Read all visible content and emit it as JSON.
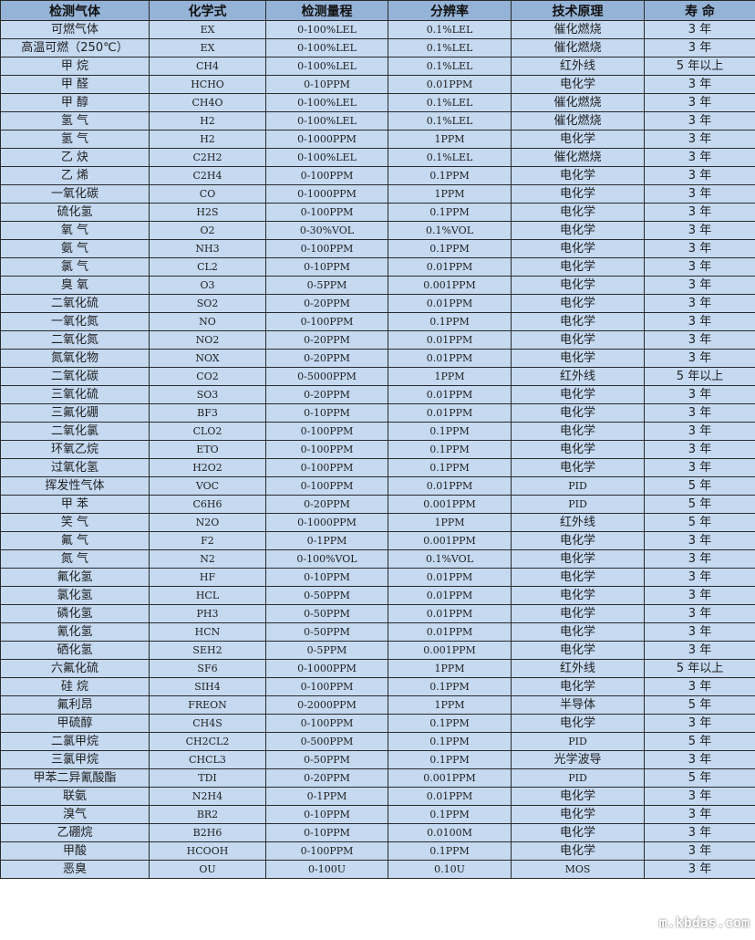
{
  "headers": [
    "检测气体",
    "化学式",
    "检测量程",
    "分辨率",
    "技术原理",
    "寿 命"
  ],
  "rows": [
    [
      "可燃气体",
      "EX",
      "0-100%LEL",
      "0.1%LEL",
      "催化燃烧",
      "3 年"
    ],
    [
      "高温可燃（250℃）",
      "EX",
      "0-100%LEL",
      "0.1%LEL",
      "催化燃烧",
      "3 年"
    ],
    [
      "甲 烷",
      "CH4",
      "0-100%LEL",
      "0.1%LEL",
      "红外线",
      "5 年以上"
    ],
    [
      "甲 醛",
      "HCHO",
      "0-10PPM",
      "0.01PPM",
      "电化学",
      "3 年"
    ],
    [
      "甲 醇",
      "CH4O",
      "0-100%LEL",
      "0.1%LEL",
      "催化燃烧",
      "3 年"
    ],
    [
      "氢 气",
      "H2",
      "0-100%LEL",
      "0.1%LEL",
      "催化燃烧",
      "3 年"
    ],
    [
      "氢 气",
      "H2",
      "0-1000PPM",
      "1PPM",
      "电化学",
      "3 年"
    ],
    [
      "乙 炔",
      "C2H2",
      "0-100%LEL",
      "0.1%LEL",
      "催化燃烧",
      "3 年"
    ],
    [
      "乙 烯",
      "C2H4",
      "0-100PPM",
      "0.1PPM",
      "电化学",
      "3 年"
    ],
    [
      "一氧化碳",
      "CO",
      "0-1000PPM",
      "1PPM",
      "电化学",
      "3 年"
    ],
    [
      "硫化氢",
      "H2S",
      "0-100PPM",
      "0.1PPM",
      "电化学",
      "3 年"
    ],
    [
      "氧 气",
      "O2",
      "0-30%VOL",
      "0.1%VOL",
      "电化学",
      "3 年"
    ],
    [
      "氨 气",
      "NH3",
      "0-100PPM",
      "0.1PPM",
      "电化学",
      "3 年"
    ],
    [
      "氯 气",
      "CL2",
      "0-10PPM",
      "0.01PPM",
      "电化学",
      "3 年"
    ],
    [
      "臭 氧",
      "O3",
      "0-5PPM",
      "0.001PPM",
      "电化学",
      "3 年"
    ],
    [
      "二氧化硫",
      "SO2",
      "0-20PPM",
      "0.01PPM",
      "电化学",
      "3 年"
    ],
    [
      "一氧化氮",
      "NO",
      "0-100PPM",
      "0.1PPM",
      "电化学",
      "3 年"
    ],
    [
      "二氧化氮",
      "NO2",
      "0-20PPM",
      "0.01PPM",
      "电化学",
      "3 年"
    ],
    [
      "氮氧化物",
      "NOX",
      "0-20PPM",
      "0.01PPM",
      "电化学",
      "3 年"
    ],
    [
      "二氧化碳",
      "CO2",
      "0-5000PPM",
      "1PPM",
      "红外线",
      "5 年以上"
    ],
    [
      "三氧化硫",
      "SO3",
      "0-20PPM",
      "0.01PPM",
      "电化学",
      "3 年"
    ],
    [
      "三氟化硼",
      "BF3",
      "0-10PPM",
      "0.01PPM",
      "电化学",
      "3 年"
    ],
    [
      "二氧化氯",
      "CLO2",
      "0-100PPM",
      "0.1PPM",
      "电化学",
      "3 年"
    ],
    [
      "环氧乙烷",
      "ETO",
      "0-100PPM",
      "0.1PPM",
      "电化学",
      "3 年"
    ],
    [
      "过氧化氢",
      "H2O2",
      "0-100PPM",
      "0.1PPM",
      "电化学",
      "3 年"
    ],
    [
      "挥发性气体",
      "VOC",
      "0-100PPM",
      "0.01PPM",
      "PID",
      "5 年"
    ],
    [
      "甲 苯",
      "C6H6",
      "0-20PPM",
      "0.001PPM",
      "PID",
      "5 年"
    ],
    [
      "笑 气",
      "N2O",
      "0-1000PPM",
      "1PPM",
      "红外线",
      "5 年"
    ],
    [
      "氟 气",
      "F2",
      "0-1PPM",
      "0.001PPM",
      "电化学",
      "3 年"
    ],
    [
      "氮 气",
      "N2",
      "0-100%VOL",
      "0.1%VOL",
      "电化学",
      "3 年"
    ],
    [
      "氟化氢",
      "HF",
      "0-10PPM",
      "0.01PPM",
      "电化学",
      "3 年"
    ],
    [
      "氯化氢",
      "HCL",
      "0-50PPM",
      "0.01PPM",
      "电化学",
      "3 年"
    ],
    [
      "磷化氢",
      "PH3",
      "0-50PPM",
      "0.01PPM",
      "电化学",
      "3 年"
    ],
    [
      "氰化氢",
      "HCN",
      "0-50PPM",
      "0.01PPM",
      "电化学",
      "3 年"
    ],
    [
      "硒化氢",
      "SEH2",
      "0-5PPM",
      "0.001PPM",
      "电化学",
      "3 年"
    ],
    [
      "六氟化硫",
      "SF6",
      "0-1000PPM",
      "1PPM",
      "红外线",
      "5 年以上"
    ],
    [
      "硅 烷",
      "SIH4",
      "0-100PPM",
      "0.1PPM",
      "电化学",
      "3 年"
    ],
    [
      "氟利昂",
      "FREON",
      "0-2000PPM",
      "1PPM",
      "半导体",
      "5 年"
    ],
    [
      "甲硫醇",
      "CH4S",
      "0-100PPM",
      "0.1PPM",
      "电化学",
      "3 年"
    ],
    [
      "二氯甲烷",
      "CH2CL2",
      "0-500PPM",
      "0.1PPM",
      "PID",
      "5 年"
    ],
    [
      "三氯甲烷",
      "CHCL3",
      "0-50PPM",
      "0.1PPM",
      "光学波导",
      "3 年"
    ],
    [
      "甲苯二异氰酸酯",
      "TDI",
      "0-20PPM",
      "0.001PPM",
      "PID",
      "5 年"
    ],
    [
      "联氨",
      "N2H4",
      "0-1PPM",
      "0.01PPM",
      "电化学",
      "3 年"
    ],
    [
      "溴气",
      "BR2",
      "0-10PPM",
      "0.1PPM",
      "电化学",
      "3 年"
    ],
    [
      "乙硼烷",
      "B2H6",
      "0-10PPM",
      "0.0100M",
      "电化学",
      "3 年"
    ],
    [
      "甲酸",
      "HCOOH",
      "0-100PPM",
      "0.1PPM",
      "电化学",
      "3 年"
    ],
    [
      "恶臭",
      "OU",
      "0-100U",
      "0.10U",
      "MOS",
      "3 年"
    ]
  ],
  "watermark": "m.kbdas.com",
  "colors": {
    "header_bg": "#95b3d7",
    "row_bg": "#c5d9f1",
    "border": "#2b2b2b"
  }
}
